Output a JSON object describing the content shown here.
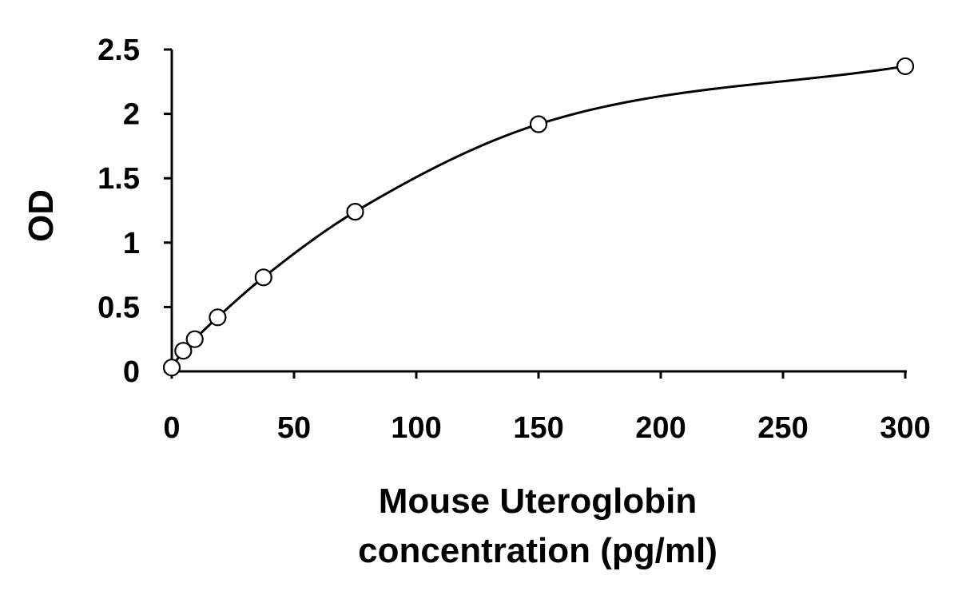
{
  "chart_data": {
    "type": "scatter",
    "title": "",
    "xlabel_lines": [
      "Mouse Uteroglobin",
      "concentration (pg/ml)"
    ],
    "ylabel": "OD",
    "xlim": [
      0,
      300
    ],
    "ylim": [
      0,
      2.5
    ],
    "x_ticks": [
      0,
      50,
      100,
      150,
      200,
      250,
      300
    ],
    "y_ticks": [
      0,
      0.5,
      1,
      1.5,
      2,
      2.5
    ],
    "x_tick_labels": [
      "0",
      "50",
      "100",
      "150",
      "200",
      "250",
      "300"
    ],
    "y_tick_labels": [
      "0",
      "0.5",
      "1",
      "1.5",
      "2",
      "2.5"
    ],
    "grid": false,
    "legend": "none",
    "series": [
      {
        "marker": "open-circle",
        "fit_curve": true,
        "x": [
          0,
          4.69,
          9.38,
          18.75,
          37.5,
          75,
          150,
          300
        ],
        "y": [
          0.03,
          0.16,
          0.25,
          0.42,
          0.73,
          1.24,
          1.92,
          2.37
        ]
      }
    ],
    "colors": {
      "line": "#000000",
      "marker_fill": "#ffffff",
      "background": "#ffffff"
    }
  }
}
